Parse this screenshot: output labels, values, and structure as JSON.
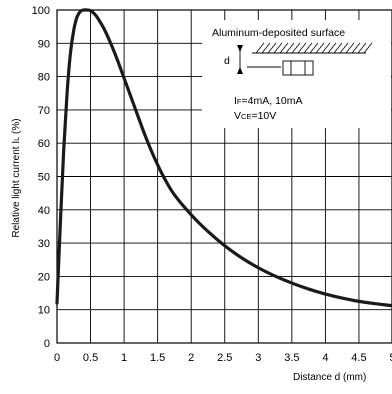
{
  "chart_data": {
    "type": "line",
    "xlabel": "Distance d (mm)",
    "ylabel": "Relative light current I",
    "ylabel_subscript": "L",
    "ylabel_unit": " (%)",
    "xlim": [
      0,
      5
    ],
    "ylim": [
      0,
      100
    ],
    "x_ticks": [
      "0",
      "0.5",
      "1",
      "1.5",
      "2",
      "2.5",
      "3",
      "3.5",
      "4",
      "4.5",
      "5"
    ],
    "y_ticks": [
      "0",
      "10",
      "20",
      "30",
      "40",
      "50",
      "60",
      "70",
      "80",
      "90",
      "100"
    ],
    "grid": true,
    "legend": "none",
    "series": [
      {
        "x": [
          0.0,
          0.05,
          0.1,
          0.15,
          0.2,
          0.25,
          0.3,
          0.35,
          0.4,
          0.45,
          0.5,
          0.55,
          0.6,
          0.7,
          0.8,
          0.9,
          1.0,
          1.1,
          1.2,
          1.3,
          1.4,
          1.5,
          1.6,
          1.75,
          2.0,
          2.25,
          2.5,
          2.75,
          3.0,
          3.25,
          3.5,
          3.75,
          4.0,
          4.25,
          4.5,
          4.75,
          5.0
        ],
        "y": [
          12,
          36,
          58,
          75,
          87,
          94,
          98,
          99.6,
          100,
          100,
          99.8,
          99,
          97.8,
          94.4,
          90,
          85,
          79.5,
          74,
          68.5,
          63,
          58,
          53.5,
          49.5,
          44.5,
          38.5,
          33.5,
          29.2,
          25.6,
          22.6,
          20.1,
          18,
          16.2,
          14.7,
          13.5,
          12.5,
          11.8,
          11.2
        ],
        "color": "#1a1a1a"
      }
    ]
  },
  "inset": {
    "surface_label": "Aluminum-deposited surface",
    "gap_label": "d",
    "condition_if_main": "I",
    "condition_if_sub": "F",
    "condition_if_value": "=4mA, 10mA",
    "condition_vce_main": "V",
    "condition_vce_sub": "CE",
    "condition_vce_value": "=10V"
  }
}
